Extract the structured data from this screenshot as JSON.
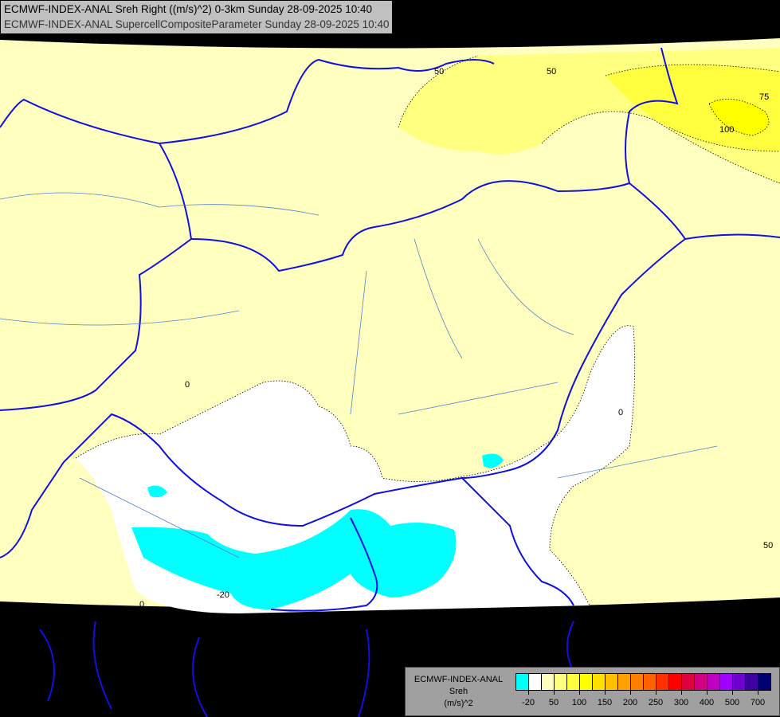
{
  "title": {
    "line1": "ECMWF-INDEX-ANAL Sreh Right ((m/s)^2) 0-3km Sunday 28-09-2025 10:40",
    "line2": "ECMWF-INDEX-ANAL SupercellCompositeParameter Sunday 28-09-2025 10:40"
  },
  "legend": {
    "model": "ECMWF-INDEX-ANAL",
    "parameter": "Sreh",
    "unit": "(m/s)^2",
    "colors": [
      "#00ffff",
      "#ffffff",
      "#ffffc0",
      "#ffff80",
      "#ffff40",
      "#ffff00",
      "#ffe000",
      "#ffc000",
      "#ffa000",
      "#ff8000",
      "#ff6000",
      "#ff3000",
      "#ff0000",
      "#e00040",
      "#d00080",
      "#c000c0",
      "#a000ff",
      "#7000d0",
      "#4000a0",
      "#000070"
    ],
    "tick_labels": [
      "-20",
      "50",
      "100",
      "150",
      "200",
      "250",
      "300",
      "400",
      "500",
      "700"
    ]
  },
  "contour_labels": [
    "50",
    "50",
    "75",
    "100",
    "0",
    "0",
    "0",
    "50",
    "-20"
  ]
}
